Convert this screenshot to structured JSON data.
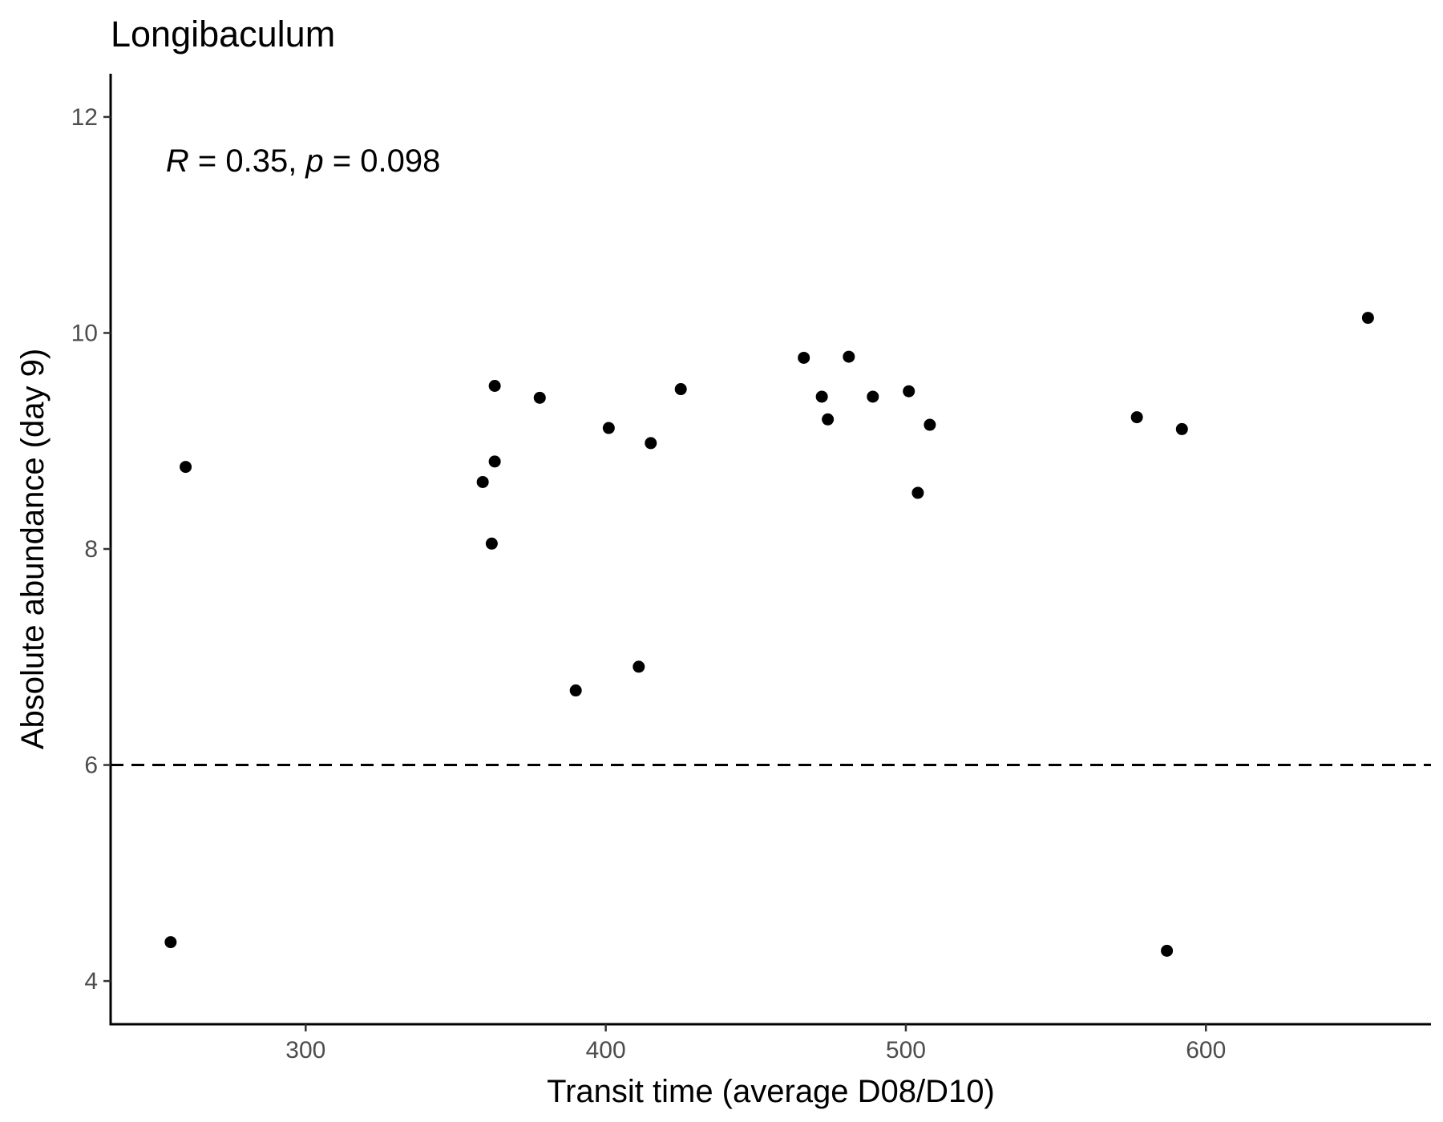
{
  "chart_data": {
    "type": "scatter",
    "title": "Longibaculum",
    "xlabel": "Transit time (average D08/D10)",
    "ylabel": "Absolute abundance (day 9)",
    "xlim": [
      235,
      675
    ],
    "ylim": [
      3.6,
      12.4
    ],
    "xticks": [
      300,
      400,
      500,
      600
    ],
    "yticks": [
      4,
      6,
      8,
      10,
      12
    ],
    "xtick_labels": [
      "300",
      "400",
      "500",
      "600"
    ],
    "ytick_labels": [
      "4",
      "6",
      "8",
      "10",
      "12"
    ],
    "reference_line": {
      "y": 6,
      "style": "dashed"
    },
    "annotation": {
      "r_symbol": "R",
      "r_text": " = 0.35, ",
      "p_symbol": "p",
      "p_text": " = 0.098",
      "x": 255,
      "y": 11.6
    },
    "grid": false,
    "point_color": "#000000",
    "points": [
      {
        "x": 255,
        "y": 4.36
      },
      {
        "x": 260,
        "y": 8.76
      },
      {
        "x": 359,
        "y": 8.62
      },
      {
        "x": 362,
        "y": 8.05
      },
      {
        "x": 363,
        "y": 8.81
      },
      {
        "x": 363,
        "y": 9.51
      },
      {
        "x": 378,
        "y": 9.4
      },
      {
        "x": 390,
        "y": 6.69
      },
      {
        "x": 401,
        "y": 9.12
      },
      {
        "x": 411,
        "y": 6.91
      },
      {
        "x": 415,
        "y": 8.98
      },
      {
        "x": 425,
        "y": 9.48
      },
      {
        "x": 466,
        "y": 9.77
      },
      {
        "x": 472,
        "y": 9.41
      },
      {
        "x": 474,
        "y": 9.2
      },
      {
        "x": 481,
        "y": 9.78
      },
      {
        "x": 489,
        "y": 9.41
      },
      {
        "x": 501,
        "y": 9.46
      },
      {
        "x": 504,
        "y": 8.52
      },
      {
        "x": 508,
        "y": 9.15
      },
      {
        "x": 577,
        "y": 9.22
      },
      {
        "x": 587,
        "y": 4.28
      },
      {
        "x": 592,
        "y": 9.11
      },
      {
        "x": 654,
        "y": 10.14
      }
    ]
  }
}
